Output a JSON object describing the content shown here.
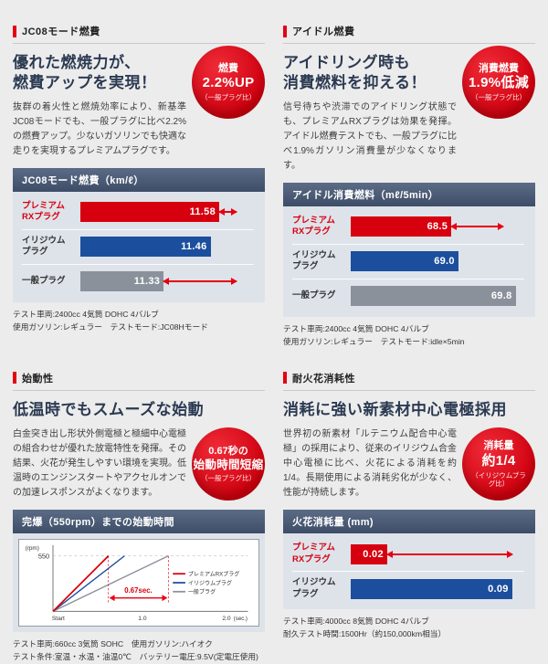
{
  "colors": {
    "accent_red": "#e60012",
    "bar_red": "#d7000f",
    "bar_blue": "#1b4f9e",
    "bar_gray": "#8b919b",
    "chart_header": "#3d4d67",
    "headline": "#2b3a52"
  },
  "sections": [
    {
      "tag": "JC08モード燃費",
      "headline_lines": [
        "優れた燃焼力が、",
        "燃費アップを実現！"
      ],
      "badge": {
        "top": "燃費",
        "main": "2.2%UP",
        "sub": "（一般プラグ比）"
      },
      "body": "抜群の着火性と燃焼効率により、新基準JC08モードでも、一般プラグに比べ2.2%の燃費アップ。少ないガソリンでも快適な走りを実現するプレミアムプラグです。",
      "notes": [
        "テスト車両:2400cc 4気筒 DOHC 4バルブ",
        "使用ガソリン:レギュラー　テストモード:JC08Hモード"
      ]
    },
    {
      "tag": "アイドル燃費",
      "headline_lines": [
        "アイドリング時も",
        "消費燃料を抑える！"
      ],
      "badge": {
        "top": "消費燃費",
        "main": "1.9%低減",
        "sub": "（一般プラグ比）"
      },
      "body": "信号待ちや渋滞でのアイドリング状態でも、プレミアムRXプラグは効果を発揮。アイドル燃費テストでも、一般プラグに比べ1.9%ガソリン消費量が少なくなります。",
      "notes": [
        "テスト車両:2400cc 4気筒 DOHC 4バルブ",
        "使用ガソリン:レギュラー　テストモード:idle×5min"
      ]
    },
    {
      "tag": "始動性",
      "headline_lines": [
        "低温時でもスムーズな始動"
      ],
      "badge": {
        "top": "0.67秒の",
        "main": "始動時間短縮",
        "sub": "（一般プラグ比）"
      },
      "body": "白金突き出し形状外側電極と極細中心電極の組合わせが優れた放電特性を発揮。その結果、火花が発生しやすい環境を実現。低温時のエンジンスタートやアクセルオンでの加速レスポンスがよくなります。",
      "notes": [
        "テスト車両:660cc 3気筒 SOHC　使用ガソリン:ハイオク",
        "テスト条件:室温・水温・油温0℃　バッテリー電圧:9.5V(定電圧使用)"
      ]
    },
    {
      "tag": "耐火花消耗性",
      "headline_lines": [
        "消耗に強い新素材中心電極採用"
      ],
      "badge": {
        "top": "消耗量",
        "main": "約1/4",
        "sub": "（イリジウムプラグ比）"
      },
      "body": "世界初の新素材「ルテニウム配合中心電極」の採用により、従来のイリジウム合金中心電極に比べ、火花による消耗を約1/4。長期使用による消耗劣化が少なく、性能が持続します。",
      "notes": [
        "テスト車両:4000cc 8気筒 DOHC 4バルブ",
        "耐久テスト時間:1500Hr（約150,000km相当）"
      ]
    }
  ],
  "chart_data": [
    {
      "type": "bar",
      "title": "JC08モード燃費（km/ℓ）",
      "unit": "km/ℓ",
      "better": "higher",
      "rows": [
        {
          "label": "プレミアム\nRXプラグ",
          "label_color": "#d7000f",
          "value": "11.58",
          "bar_color": "#d7000f",
          "width_pct": 80,
          "arrow_to_pct": 90
        },
        {
          "label": "イリジウム\nプラグ",
          "label_color": "#333333",
          "value": "11.46",
          "bar_color": "#1b4f9e",
          "width_pct": 75,
          "arrow_to_pct": null
        },
        {
          "label": "一般プラグ",
          "label_color": "#333333",
          "value": "11.33",
          "bar_color": "#8b919b",
          "width_pct": 48,
          "arrow_to_pct": 90
        }
      ]
    },
    {
      "type": "bar",
      "title": "アイドル消費燃料（mℓ/5min）",
      "unit": "mℓ/5min",
      "better": "lower",
      "rows": [
        {
          "label": "プレミアム\nRXプラグ",
          "label_color": "#d7000f",
          "value": "68.5",
          "bar_color": "#d7000f",
          "width_pct": 58,
          "arrow_to_pct": 88
        },
        {
          "label": "イリジウム\nプラグ",
          "label_color": "#333333",
          "value": "69.0",
          "bar_color": "#1b4f9e",
          "width_pct": 62,
          "arrow_to_pct": null
        },
        {
          "label": "一般プラグ",
          "label_color": "#333333",
          "value": "69.8",
          "bar_color": "#8b919b",
          "width_pct": 95,
          "arrow_to_pct": null
        }
      ]
    },
    {
      "type": "line",
      "title": "完爆（550rpm）までの始動時間",
      "ylabel": "(rpm)",
      "y_tick": "550",
      "x_ticks": [
        "Start",
        "1.0",
        "2.0"
      ],
      "x_unit": "(sec.)",
      "xlim": [
        0,
        2.2
      ],
      "annotation": "0.67sec.",
      "series": [
        {
          "name": "プレミアムRXプラグ",
          "color": "#d7000f",
          "reach_550_sec": 0.62
        },
        {
          "name": "イリジウムプラグ",
          "color": "#1b4f9e",
          "reach_550_sec": 0.8
        },
        {
          "name": "一般プラグ",
          "color": "#8b919b",
          "reach_550_sec": 1.29
        }
      ]
    },
    {
      "type": "bar",
      "title": "火花消耗量 (mm)",
      "unit": "mm",
      "better": "lower",
      "rows": [
        {
          "label": "プレミアム\nRXプラグ",
          "label_color": "#d7000f",
          "value": "0.02",
          "bar_color": "#d7000f",
          "width_pct": 21,
          "arrow_to_pct": 93
        },
        {
          "label": "イリジウム\nプラグ",
          "label_color": "#333333",
          "value": "0.09",
          "bar_color": "#1b4f9e",
          "width_pct": 93,
          "arrow_to_pct": null
        }
      ]
    }
  ]
}
